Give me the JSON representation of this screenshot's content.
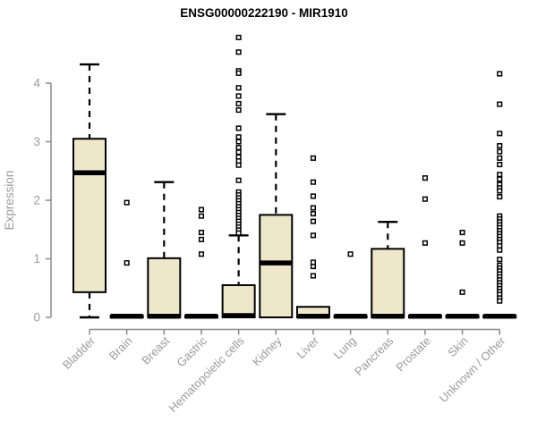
{
  "chart_data": {
    "type": "boxplot",
    "title": "ENSG00000222190 - MIR1910",
    "xlabel": "",
    "ylabel": "Expression",
    "ylim": [
      0,
      4.85
    ],
    "yticks": [
      0,
      1,
      2,
      3,
      4
    ],
    "grid": false,
    "legend": "none",
    "colors": {
      "box_fill": "#EEE7CB",
      "box_stroke": "#000000",
      "median": "#000000",
      "whisker": "#000000",
      "outlier_stroke": "#000000",
      "outlier_fill": "#ffffff",
      "axis": "#8a8a8a",
      "tick_label": "#9a9a9a",
      "title": "#000000"
    },
    "categories": [
      "Bladder",
      "Brain",
      "Breast",
      "Gastric",
      "Hematopoietic cells",
      "Kidney",
      "Liver",
      "Lung",
      "Pancreas",
      "Prostate",
      "Skin",
      "Unknown / Other"
    ],
    "series": [
      {
        "category": "Bladder",
        "q1": 0.43,
        "median": 2.47,
        "q3": 3.05,
        "whisker_low": 0.0,
        "whisker_high": 4.32,
        "outliers": []
      },
      {
        "category": "Brain",
        "q1": 0.0,
        "median": 0.02,
        "q3": 0.03,
        "whisker_low": 0.0,
        "whisker_high": 0.03,
        "outliers": [
          1.96,
          0.93
        ]
      },
      {
        "category": "Breast",
        "q1": 0.0,
        "median": 0.02,
        "q3": 1.01,
        "whisker_low": 0.0,
        "whisker_high": 2.31,
        "outliers": []
      },
      {
        "category": "Gastric",
        "q1": 0.0,
        "median": 0.02,
        "q3": 0.03,
        "whisker_low": 0.0,
        "whisker_high": 0.03,
        "outliers": [
          1.84,
          1.73,
          1.45,
          1.33,
          1.08
        ]
      },
      {
        "category": "Hematopoietic cells",
        "q1": 0.0,
        "median": 0.03,
        "q3": 0.55,
        "whisker_low": 0.0,
        "whisker_high": 1.4,
        "outliers": [
          4.78,
          4.53,
          4.21,
          4.17,
          3.92,
          3.78,
          3.65,
          3.54,
          3.23,
          3.08,
          3.0,
          2.9,
          2.82,
          2.74,
          2.67,
          2.6,
          2.34,
          2.14,
          2.09,
          2.04,
          1.99,
          1.94,
          1.89,
          1.84,
          1.79,
          1.74,
          1.69,
          1.64,
          1.59,
          1.54,
          1.49,
          1.44
        ]
      },
      {
        "category": "Kidney",
        "q1": 0.0,
        "median": 0.93,
        "q3": 1.75,
        "whisker_low": 0.0,
        "whisker_high": 3.47,
        "outliers": []
      },
      {
        "category": "Liver",
        "q1": 0.0,
        "median": 0.02,
        "q3": 0.18,
        "whisker_low": 0.0,
        "whisker_high": 0.18,
        "outliers": [
          2.72,
          2.31,
          2.07,
          1.87,
          1.77,
          1.64,
          1.4,
          0.94,
          0.87,
          0.71
        ]
      },
      {
        "category": "Lung",
        "q1": 0.0,
        "median": 0.02,
        "q3": 0.03,
        "whisker_low": 0.0,
        "whisker_high": 0.03,
        "outliers": [
          1.08
        ]
      },
      {
        "category": "Pancreas",
        "q1": 0.0,
        "median": 0.02,
        "q3": 1.17,
        "whisker_low": 0.0,
        "whisker_high": 1.63,
        "outliers": []
      },
      {
        "category": "Prostate",
        "q1": 0.0,
        "median": 0.02,
        "q3": 0.03,
        "whisker_low": 0.0,
        "whisker_high": 0.03,
        "outliers": [
          2.38,
          2.02,
          1.27
        ]
      },
      {
        "category": "Skin",
        "q1": 0.0,
        "median": 0.02,
        "q3": 0.03,
        "whisker_low": 0.0,
        "whisker_high": 0.03,
        "outliers": [
          1.45,
          1.27,
          0.43
        ]
      },
      {
        "category": "Unknown / Other",
        "q1": 0.0,
        "median": 0.02,
        "q3": 0.03,
        "whisker_low": 0.0,
        "whisker_high": 0.03,
        "outliers": [
          4.16,
          3.64,
          3.14,
          2.93,
          2.83,
          2.72,
          2.61,
          2.44,
          2.36,
          2.27,
          2.21,
          2.16,
          2.06,
          1.73,
          1.68,
          1.63,
          1.58,
          1.53,
          1.48,
          1.43,
          1.38,
          1.33,
          1.28,
          1.22,
          1.15,
          0.99,
          0.89,
          0.84,
          0.79,
          0.74,
          0.69,
          0.64,
          0.59,
          0.54,
          0.49,
          0.44,
          0.39,
          0.33,
          0.28
        ]
      }
    ]
  }
}
